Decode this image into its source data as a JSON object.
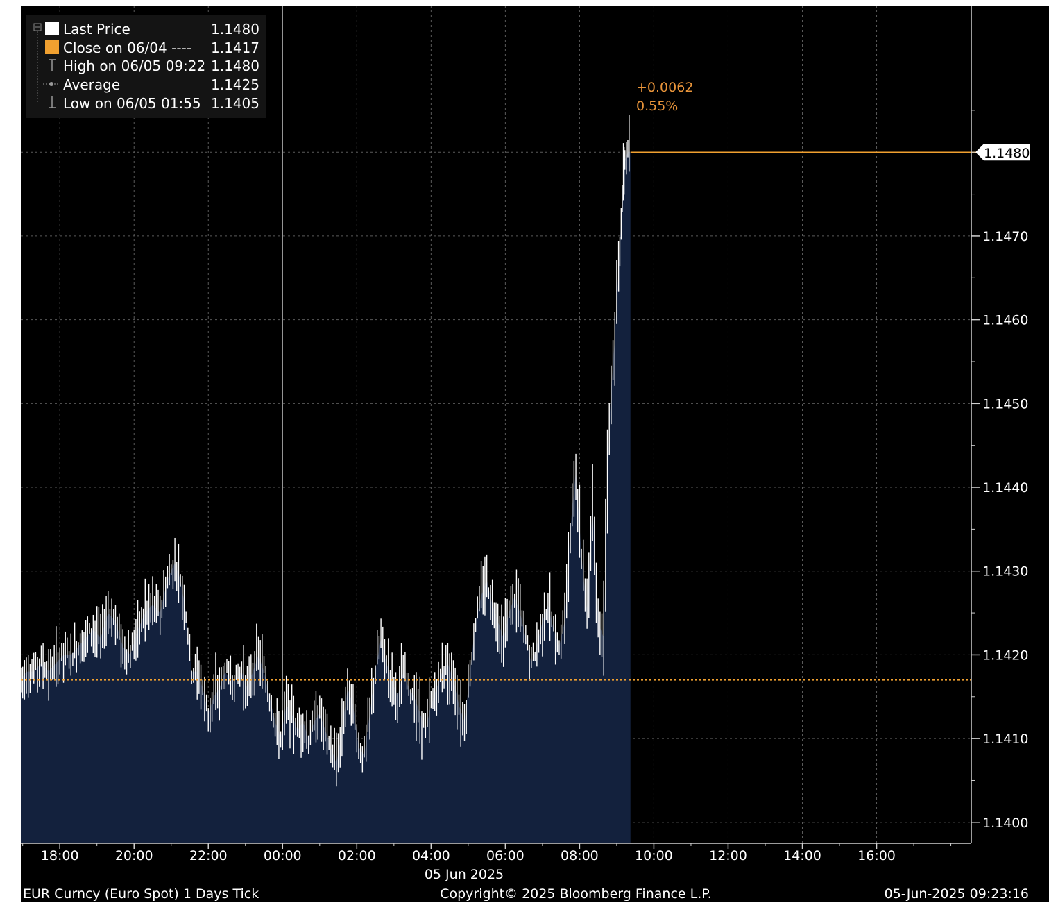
{
  "legend": {
    "last_price_label": "Last Price",
    "last_price_value": "1.1480",
    "close_label": "Close on 06/04 ----",
    "close_value": "1.1417",
    "high_label": "High on 06/05 09:22",
    "high_value": "1.1480",
    "average_label": "Average",
    "average_value": "1.1425",
    "low_label": "Low on 06/05 01:55",
    "low_value": "1.1405"
  },
  "annotation": {
    "change": "+0.0062",
    "change_pct": "0.55%"
  },
  "last_price_tag": "1.1480",
  "date_label": "05 Jun 2025",
  "footer": {
    "left": "EUR Curncy (Euro Spot) 1 Days  Tick",
    "center": "Copyright© 2025 Bloomberg Finance L.P.",
    "right": "05-Jun-2025 09:23:16"
  },
  "colors": {
    "background": "#000000",
    "area_fill": "#13213d",
    "price_line": "#ffffff",
    "close_line": "#f0a030",
    "grid": "#5a5a5a",
    "annotation": "#e8943a"
  },
  "chart_data": {
    "type": "area",
    "x_unit": "time (hours, 05 Jun 2025; negative = 04 Jun)",
    "xlim": [
      -7.05,
      18.55
    ],
    "ylim": [
      1.13975,
      1.14975
    ],
    "x_ticks": [
      -6,
      -4,
      -2,
      0,
      2,
      4,
      6,
      8,
      10,
      12,
      14,
      16
    ],
    "x_tick_labels": [
      "18:00",
      "20:00",
      "22:00",
      "00:00",
      "02:00",
      "04:00",
      "06:00",
      "08:00",
      "10:00",
      "12:00",
      "14:00",
      "16:00"
    ],
    "y_ticks": [
      1.14,
      1.141,
      1.142,
      1.143,
      1.144,
      1.145,
      1.146,
      1.147
    ],
    "y_tick_labels": [
      "1.1400",
      "1.1410",
      "1.1420",
      "1.1430",
      "1.1440",
      "1.1450",
      "1.1460",
      "1.1470"
    ],
    "close_value": 1.1417,
    "last_value": 1.148,
    "last_time": 9.37,
    "grid": true,
    "legend_position": "top-left",
    "series": [
      {
        "name": "Last Price",
        "x": [
          -7.05,
          -6.9,
          -6.7,
          -6.5,
          -6.3,
          -6.1,
          -5.9,
          -5.7,
          -5.5,
          -5.3,
          -5.1,
          -4.9,
          -4.7,
          -4.5,
          -4.3,
          -4.1,
          -3.9,
          -3.7,
          -3.5,
          -3.3,
          -3.1,
          -2.9,
          -2.75,
          -2.6,
          -2.45,
          -2.3,
          -2.15,
          -2.0,
          -1.85,
          -1.7,
          -1.55,
          -1.4,
          -1.25,
          -1.1,
          -0.95,
          -0.8,
          -0.65,
          -0.5,
          -0.35,
          -0.2,
          -0.05,
          0.1,
          0.25,
          0.4,
          0.55,
          0.7,
          0.85,
          1.0,
          1.15,
          1.3,
          1.45,
          1.6,
          1.75,
          1.9,
          2.05,
          2.2,
          2.35,
          2.5,
          2.65,
          2.8,
          2.95,
          3.1,
          3.25,
          3.4,
          3.55,
          3.7,
          3.85,
          4.0,
          4.15,
          4.3,
          4.45,
          4.6,
          4.75,
          4.9,
          5.05,
          5.2,
          5.35,
          5.5,
          5.65,
          5.8,
          5.95,
          6.1,
          6.25,
          6.4,
          6.55,
          6.7,
          6.85,
          7.0,
          7.15,
          7.3,
          7.45,
          7.6,
          7.75,
          7.9,
          8.05,
          8.2,
          8.35,
          8.5,
          8.65,
          8.8,
          8.95,
          9.05,
          9.12,
          9.18,
          9.22,
          9.3,
          9.37
        ],
        "values": [
          1.1417,
          1.1418,
          1.1418,
          1.1419,
          1.1418,
          1.1419,
          1.142,
          1.142,
          1.1421,
          1.1422,
          1.1423,
          1.1422,
          1.1425,
          1.1424,
          1.1421,
          1.142,
          1.1423,
          1.1425,
          1.1426,
          1.1425,
          1.1429,
          1.1431,
          1.1429,
          1.1425,
          1.1418,
          1.1418,
          1.1416,
          1.1413,
          1.1415,
          1.1416,
          1.1418,
          1.1417,
          1.1417,
          1.1418,
          1.1416,
          1.1418,
          1.142,
          1.1418,
          1.1415,
          1.1412,
          1.141,
          1.1414,
          1.1413,
          1.1411,
          1.1412,
          1.141,
          1.1412,
          1.1413,
          1.1411,
          1.1409,
          1.1407,
          1.1411,
          1.1416,
          1.1414,
          1.1409,
          1.1408,
          1.1413,
          1.1418,
          1.1422,
          1.1419,
          1.1417,
          1.1415,
          1.1418,
          1.1416,
          1.1415,
          1.1413,
          1.1411,
          1.1414,
          1.1416,
          1.1418,
          1.1419,
          1.1417,
          1.1414,
          1.1412,
          1.1418,
          1.1424,
          1.1427,
          1.1429,
          1.1426,
          1.1424,
          1.1422,
          1.1425,
          1.1427,
          1.1425,
          1.1422,
          1.1419,
          1.1421,
          1.1424,
          1.1426,
          1.1423,
          1.1421,
          1.1424,
          1.1435,
          1.1442,
          1.1432,
          1.1425,
          1.1438,
          1.1424,
          1.1422,
          1.1448,
          1.1458,
          1.1466,
          1.1472,
          1.1477,
          1.1479,
          1.148,
          1.148
        ]
      }
    ]
  }
}
